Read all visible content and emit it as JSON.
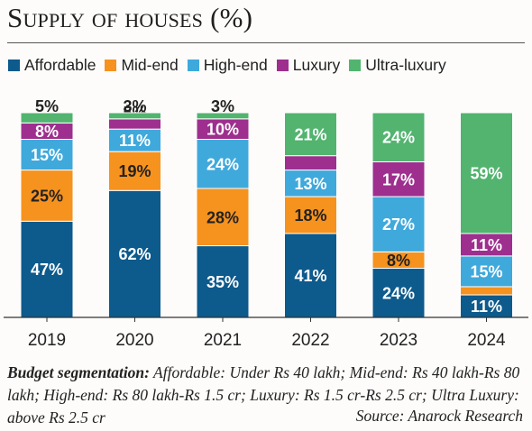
{
  "title": "Supply of houses (%)",
  "colors": {
    "Affordable": "#0d5a8c",
    "Mid-end": "#f6921e",
    "High-end": "#3fa9dc",
    "Luxury": "#9e2f8e",
    "Ultra-luxury": "#52b46f"
  },
  "legend": [
    "Affordable",
    "Mid-end",
    "High-end",
    "Luxury",
    "Ultra-luxury"
  ],
  "chart_data": {
    "type": "bar",
    "stacked": true,
    "categories": [
      "2019",
      "2020",
      "2021",
      "2022",
      "2023",
      "2024"
    ],
    "series": [
      {
        "name": "Affordable",
        "values": [
          47,
          62,
          35,
          41,
          24,
          11
        ]
      },
      {
        "name": "Mid-end",
        "values": [
          25,
          19,
          28,
          18,
          8,
          4
        ]
      },
      {
        "name": "High-end",
        "values": [
          15,
          11,
          24,
          13,
          27,
          15
        ]
      },
      {
        "name": "Luxury",
        "values": [
          8,
          5,
          10,
          7,
          17,
          11
        ]
      },
      {
        "name": "Ultra-luxury",
        "values": [
          5,
          3,
          3,
          21,
          24,
          59
        ]
      }
    ],
    "ylim": [
      0,
      100
    ],
    "grid": false,
    "legend_position": "top"
  },
  "footnote": {
    "lead": "Budget segmentation:",
    "text": " Affordable: Under Rs 40 lakh; Mid-end: Rs 40 lakh-Rs 80 lakh; High-end: Rs 80 lakh-Rs 1.5 cr; Luxury: Rs 1.5 cr-Rs 2.5 cr; Ultra Luxury: above Rs 2.5 cr"
  },
  "source": "Source: Anarock Research"
}
